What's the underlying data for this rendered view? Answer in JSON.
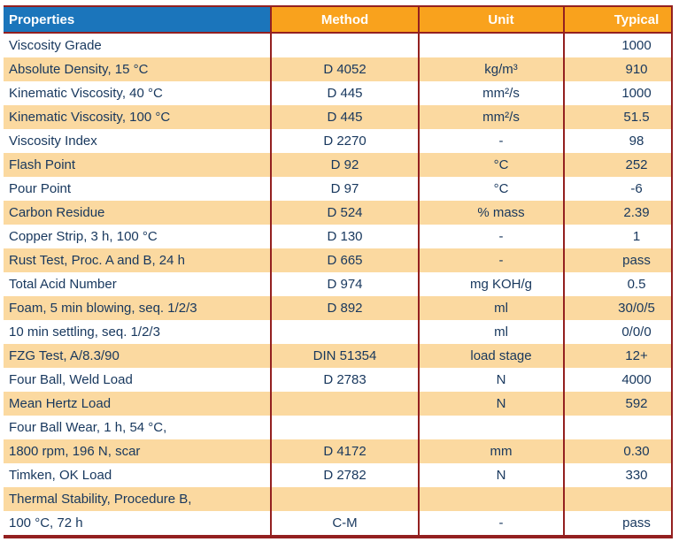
{
  "table": {
    "columns": [
      {
        "label": "Properties"
      },
      {
        "label": "Method"
      },
      {
        "label": "Unit"
      },
      {
        "label": "Typical"
      }
    ],
    "rows": [
      {
        "property": "Viscosity Grade",
        "method": "",
        "unit": "",
        "typical": "1000"
      },
      {
        "property": "Absolute Density, 15 °C",
        "method": "D 4052",
        "unit": "kg/m³",
        "typical": "910"
      },
      {
        "property": "Kinematic Viscosity, 40 °C",
        "method": "D 445",
        "unit": "mm²/s",
        "typical": "1000"
      },
      {
        "property": "Kinematic Viscosity, 100 °C",
        "method": "D 445",
        "unit": "mm²/s",
        "typical": "51.5"
      },
      {
        "property": "Viscosity Index",
        "method": "D 2270",
        "unit": "-",
        "typical": "98"
      },
      {
        "property": "Flash Point",
        "method": "D 92",
        "unit": "°C",
        "typical": "252"
      },
      {
        "property": "Pour Point",
        "method": "D 97",
        "unit": "°C",
        "typical": "-6"
      },
      {
        "property": "Carbon Residue",
        "method": "D 524",
        "unit": "% mass",
        "typical": "2.39"
      },
      {
        "property": "Copper Strip, 3 h, 100 °C",
        "method": "D 130",
        "unit": "-",
        "typical": "1"
      },
      {
        "property": "Rust Test, Proc. A and B, 24 h",
        "method": "D 665",
        "unit": "-",
        "typical": "pass"
      },
      {
        "property": "Total Acid Number",
        "method": "D 974",
        "unit": "mg KOH/g",
        "typical": "0.5"
      },
      {
        "property": "Foam, 5 min blowing, seq. 1/2/3",
        "method": "D 892",
        "unit": "ml",
        "typical": "30/0/5"
      },
      {
        "property": "10 min settling, seq. 1/2/3",
        "method": "",
        "unit": "ml",
        "typical": "0/0/0"
      },
      {
        "property": "FZG Test, A/8.3/90",
        "method": "DIN 51354",
        "unit": "load stage",
        "typical": "12+"
      },
      {
        "property": "Four Ball, Weld Load",
        "method": "D 2783",
        "unit": "N",
        "typical": "4000"
      },
      {
        "property": "Mean Hertz Load",
        "method": "",
        "unit": "N",
        "typical": "592"
      },
      {
        "property": "Four Ball Wear, 1 h, 54 °C,",
        "method": "",
        "unit": "",
        "typical": ""
      },
      {
        "property": "1800 rpm, 196 N, scar",
        "method": "D 4172",
        "unit": "mm",
        "typical": "0.30"
      },
      {
        "property": "Timken, OK Load",
        "method": "D 2782",
        "unit": "N",
        "typical": "330"
      },
      {
        "property": "Thermal Stability, Procedure B,",
        "method": "",
        "unit": "",
        "typical": ""
      },
      {
        "property": "100 °C, 72 h",
        "method": "C-M",
        "unit": "-",
        "typical": "pass"
      }
    ]
  },
  "colors": {
    "header_blue": "#1b75bb",
    "header_orange": "#f9a21d",
    "row_orange": "#fbd9a0",
    "row_white": "#ffffff",
    "border_red": "#932020",
    "text_navy": "#17375d",
    "header_text": "#ffffff"
  }
}
